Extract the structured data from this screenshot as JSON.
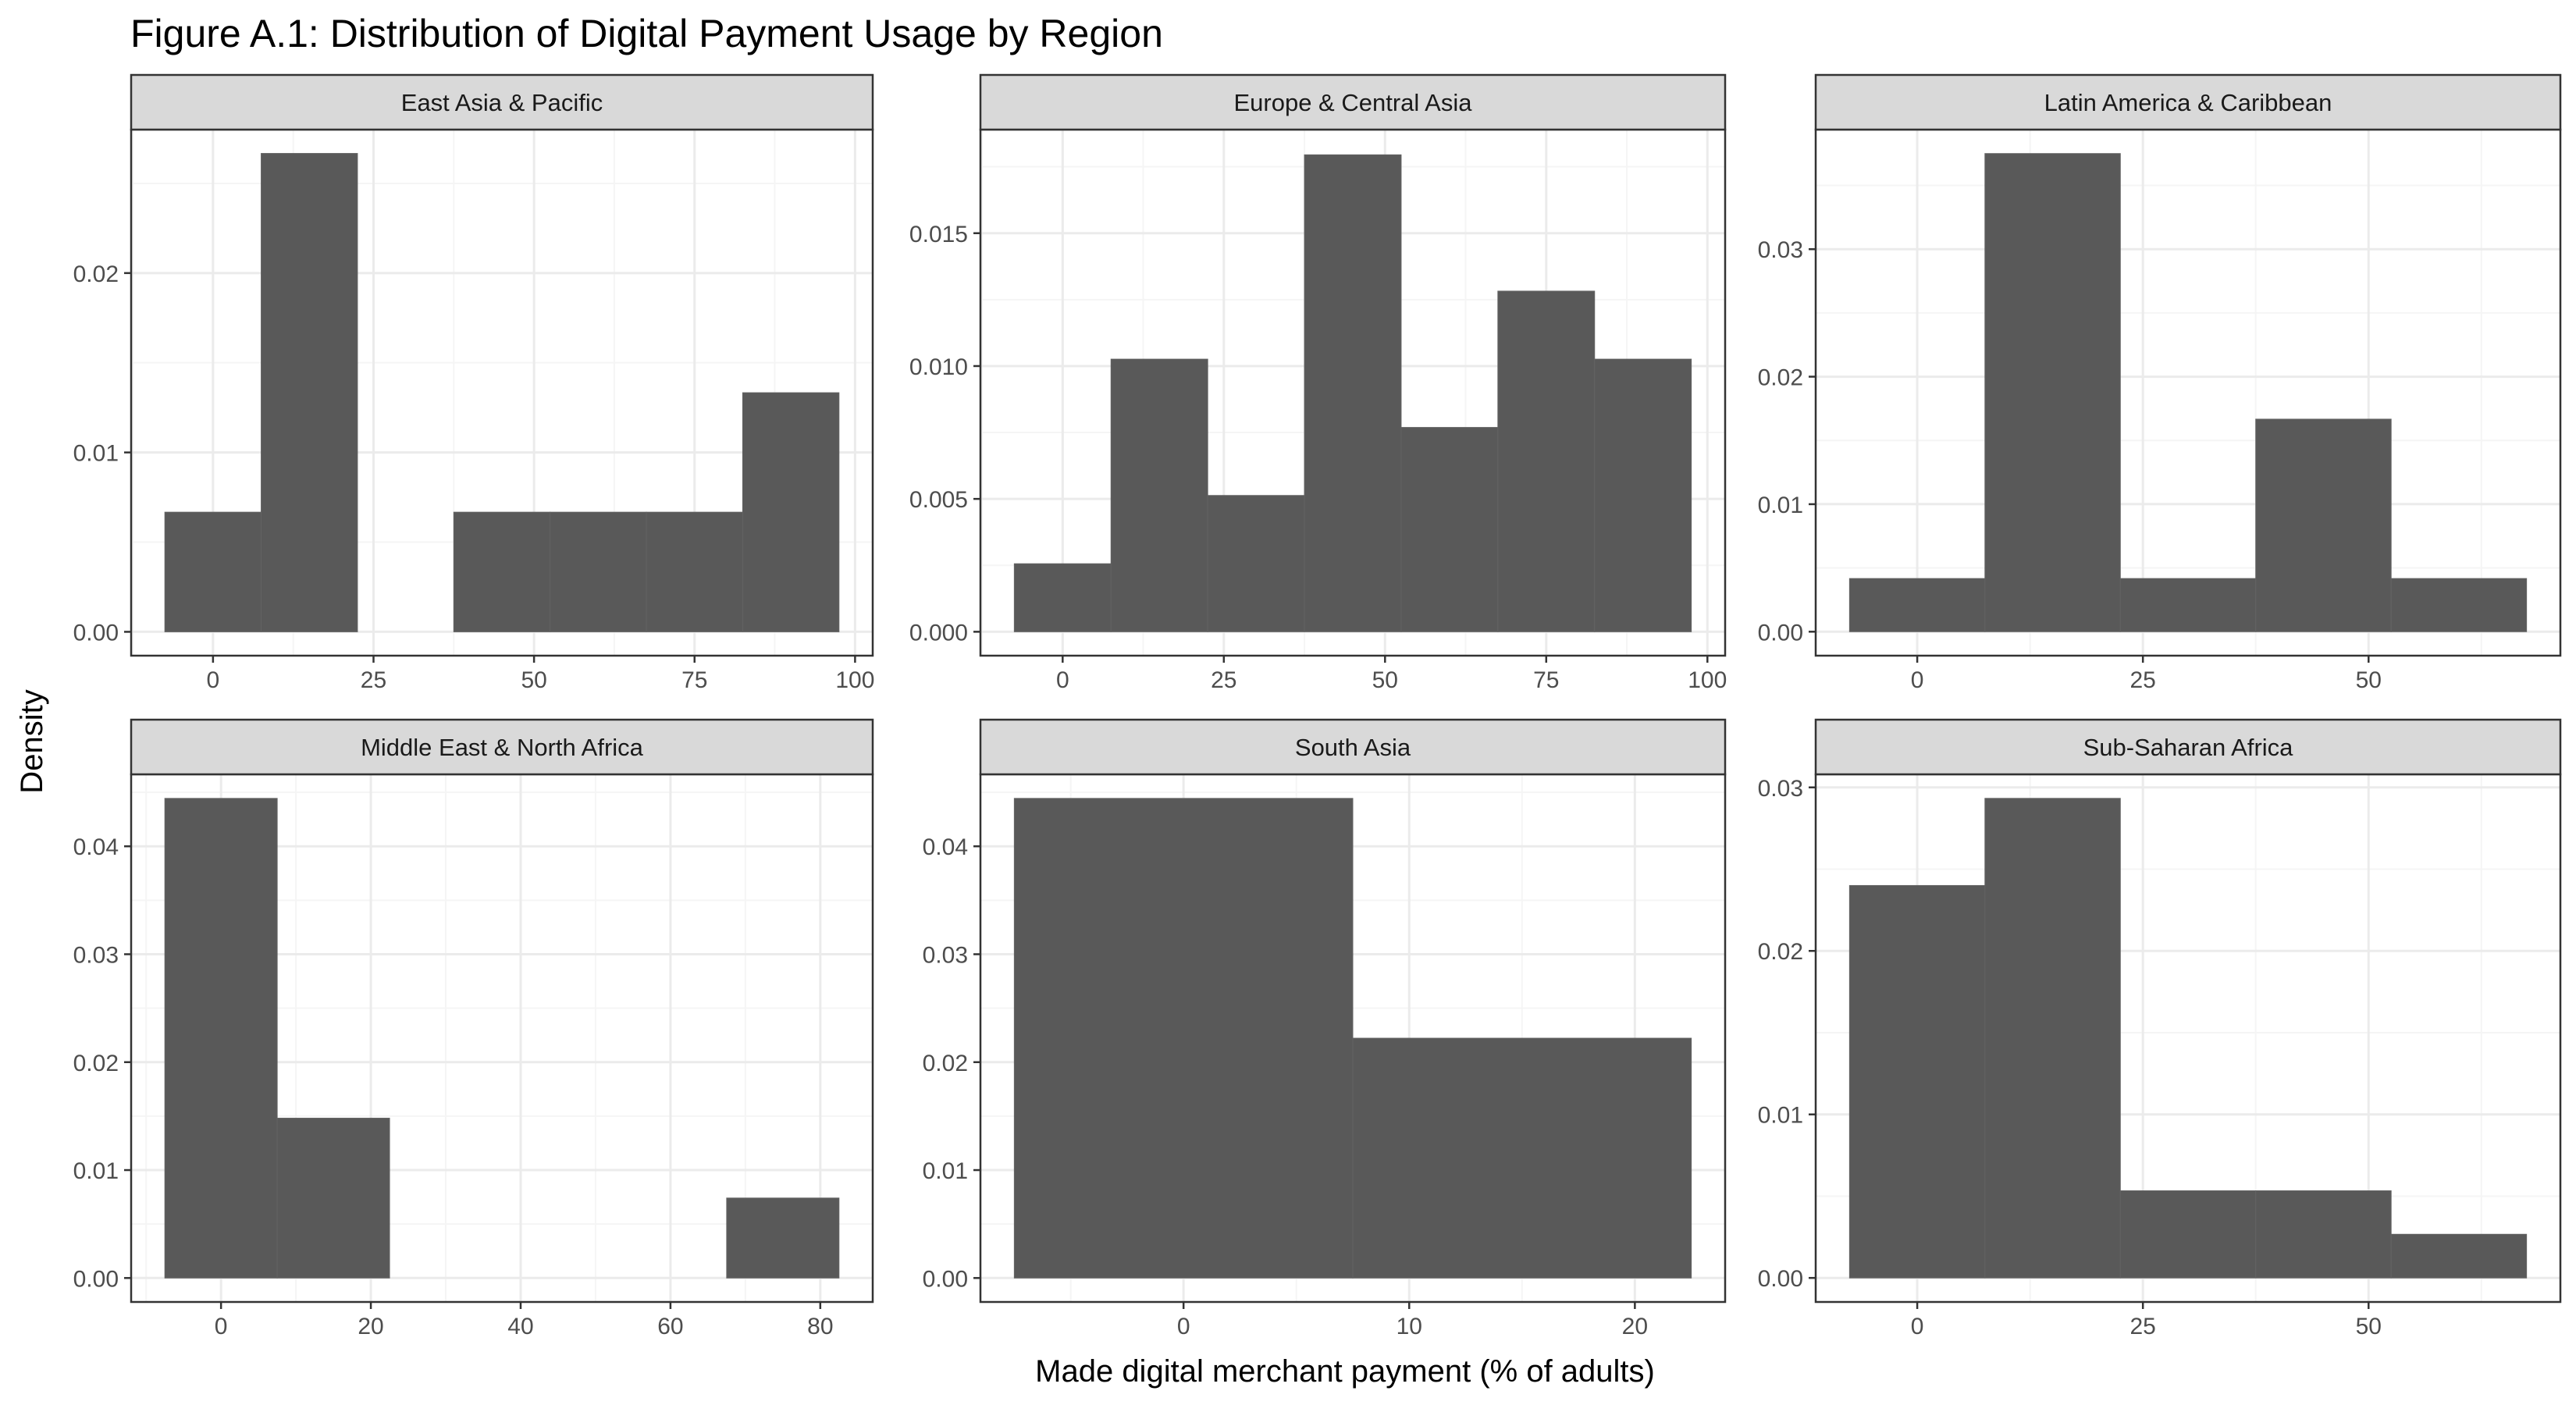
{
  "figure": {
    "title": "Figure A.1: Distribution of Digital Payment Usage by Region",
    "xlabel": "Made digital merchant payment (% of adults)",
    "ylabel": "Density"
  },
  "colors": {
    "bar_fill": "#595959",
    "strip_fill": "#d9d9d9",
    "panel_border": "#333333",
    "grid_major": "#ebebeb",
    "grid_minor": "#f5f5f5",
    "tick_text": "#4d4d4d"
  },
  "chart_data": [
    {
      "type": "bar",
      "title": "East Asia & Pacific",
      "bin_width": 15,
      "bins": [
        {
          "x0": -7.5,
          "x1": 7.5,
          "density": 0.00667
        },
        {
          "x0": 7.5,
          "x1": 22.5,
          "density": 0.02667
        },
        {
          "x0": 22.5,
          "x1": 37.5,
          "density": 0
        },
        {
          "x0": 37.5,
          "x1": 52.5,
          "density": 0.00667
        },
        {
          "x0": 52.5,
          "x1": 67.5,
          "density": 0.00667
        },
        {
          "x0": 67.5,
          "x1": 82.5,
          "density": 0.00667
        },
        {
          "x0": 82.5,
          "x1": 97.5,
          "density": 0.01333
        }
      ],
      "xlim": [
        -12.75,
        102.75
      ],
      "ylim": [
        -0.00133,
        0.028
      ],
      "xticks": [
        0,
        25,
        50,
        75,
        100
      ],
      "xtick_labels": [
        "0",
        "25",
        "50",
        "75",
        "100"
      ],
      "yticks": [
        0,
        0.01,
        0.02
      ],
      "ytick_labels": [
        "0.00",
        "0.01",
        "0.02"
      ]
    },
    {
      "type": "bar",
      "title": "Europe & Central Asia",
      "bin_width": 15,
      "bins": [
        {
          "x0": -7.5,
          "x1": 7.5,
          "density": 0.00256
        },
        {
          "x0": 7.5,
          "x1": 22.5,
          "density": 0.01026
        },
        {
          "x0": 22.5,
          "x1": 37.5,
          "density": 0.00513
        },
        {
          "x0": 37.5,
          "x1": 52.5,
          "density": 0.01795
        },
        {
          "x0": 52.5,
          "x1": 67.5,
          "density": 0.00769
        },
        {
          "x0": 67.5,
          "x1": 82.5,
          "density": 0.01282
        },
        {
          "x0": 82.5,
          "x1": 97.5,
          "density": 0.01026
        }
      ],
      "xlim": [
        -12.75,
        102.75
      ],
      "ylim": [
        -0.0009,
        0.0189
      ],
      "xticks": [
        0,
        25,
        50,
        75,
        100
      ],
      "xtick_labels": [
        "0",
        "25",
        "50",
        "75",
        "100"
      ],
      "yticks": [
        0,
        0.005,
        0.01,
        0.015
      ],
      "ytick_labels": [
        "0.000",
        "0.005",
        "0.010",
        "0.015"
      ]
    },
    {
      "type": "bar",
      "title": "Latin America & Caribbean",
      "bin_width": 15,
      "bins": [
        {
          "x0": -7.5,
          "x1": 7.5,
          "density": 0.00417
        },
        {
          "x0": 7.5,
          "x1": 22.5,
          "density": 0.0375
        },
        {
          "x0": 22.5,
          "x1": 37.5,
          "density": 0.00417
        },
        {
          "x0": 37.5,
          "x1": 52.5,
          "density": 0.01667
        },
        {
          "x0": 52.5,
          "x1": 67.5,
          "density": 0.00417
        }
      ],
      "xlim": [
        -11.25,
        71.25
      ],
      "ylim": [
        -0.00188,
        0.03938
      ],
      "xticks": [
        0,
        25,
        50
      ],
      "xtick_labels": [
        "0",
        "25",
        "50"
      ],
      "yticks": [
        0,
        0.01,
        0.02,
        0.03
      ],
      "ytick_labels": [
        "0.00",
        "0.01",
        "0.02",
        "0.03"
      ]
    },
    {
      "type": "bar",
      "title": "Middle East & North Africa",
      "bin_width": 15,
      "bins": [
        {
          "x0": -7.5,
          "x1": 7.5,
          "density": 0.04444
        },
        {
          "x0": 7.5,
          "x1": 22.5,
          "density": 0.01481
        },
        {
          "x0": 22.5,
          "x1": 37.5,
          "density": 0
        },
        {
          "x0": 37.5,
          "x1": 52.5,
          "density": 0
        },
        {
          "x0": 52.5,
          "x1": 67.5,
          "density": 0
        },
        {
          "x0": 67.5,
          "x1": 82.5,
          "density": 0.00741
        }
      ],
      "xlim": [
        -12,
        87
      ],
      "ylim": [
        -0.00222,
        0.04667
      ],
      "xticks": [
        0,
        20,
        40,
        60,
        80
      ],
      "xtick_labels": [
        "0",
        "20",
        "40",
        "60",
        "80"
      ],
      "yticks": [
        0,
        0.01,
        0.02,
        0.03,
        0.04
      ],
      "ytick_labels": [
        "0.00",
        "0.01",
        "0.02",
        "0.03",
        "0.04"
      ]
    },
    {
      "type": "bar",
      "title": "South Asia",
      "bin_width": 15,
      "bins": [
        {
          "x0": -7.5,
          "x1": 7.5,
          "density": 0.04444
        },
        {
          "x0": 7.5,
          "x1": 22.5,
          "density": 0.02222
        }
      ],
      "xlim": [
        -9,
        24
      ],
      "ylim": [
        -0.00222,
        0.04667
      ],
      "xticks": [
        0,
        10,
        20
      ],
      "xtick_labels": [
        "0",
        "10",
        "20"
      ],
      "yticks": [
        0,
        0.01,
        0.02,
        0.03,
        0.04
      ],
      "ytick_labels": [
        "0.00",
        "0.01",
        "0.02",
        "0.03",
        "0.04"
      ]
    },
    {
      "type": "bar",
      "title": "Sub-Saharan Africa",
      "bin_width": 15,
      "bins": [
        {
          "x0": -7.5,
          "x1": 7.5,
          "density": 0.024
        },
        {
          "x0": 7.5,
          "x1": 22.5,
          "density": 0.02933
        },
        {
          "x0": 22.5,
          "x1": 37.5,
          "density": 0.00533
        },
        {
          "x0": 37.5,
          "x1": 52.5,
          "density": 0.00533
        },
        {
          "x0": 52.5,
          "x1": 67.5,
          "density": 0.00267
        }
      ],
      "xlim": [
        -11.25,
        71.25
      ],
      "ylim": [
        -0.00147,
        0.0308
      ],
      "xticks": [
        0,
        25,
        50
      ],
      "xtick_labels": [
        "0",
        "25",
        "50"
      ],
      "yticks": [
        0,
        0.01,
        0.02,
        0.03
      ],
      "ytick_labels": [
        "0.00",
        "0.01",
        "0.02",
        "0.03"
      ]
    }
  ]
}
